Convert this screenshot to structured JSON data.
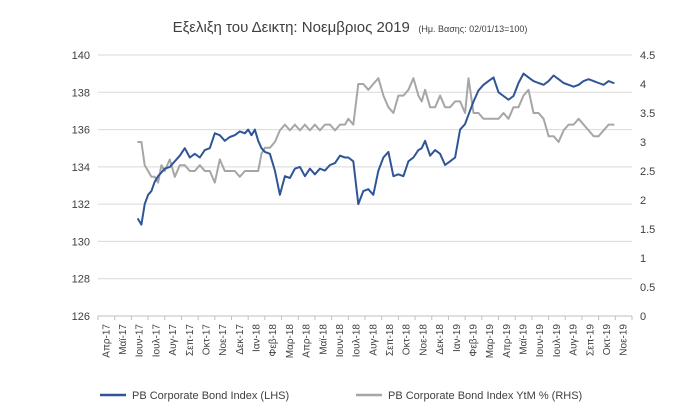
{
  "chart_data": {
    "type": "line",
    "title": "Εξελιξη του Δεικτη: Νοεμβριος 2019",
    "subtitle": "(Ημ. Βασης: 02/01/13=100)",
    "x_labels": [
      "Απρ-17",
      "Μαϊ-17",
      "Ιουν-17",
      "Ιουλ-17",
      "Αυγ-17",
      "Σεπ-17",
      "Οκτ-17",
      "Νοε-17",
      "Δεκ-17",
      "Ιαν-18",
      "Φεβ-18",
      "Μαρ-18",
      "Απρ-18",
      "Μαϊ-18",
      "Ιουν-18",
      "Ιουλ-18",
      "Αυγ-18",
      "Σεπ-18",
      "Οκτ-18",
      "Νοε-18",
      "Δεκ-18",
      "Ιαν-19",
      "Φεβ-19",
      "Μαρ-19",
      "Απρ-19",
      "Μαϊ-19",
      "Ιουν-19",
      "Ιουλ-19",
      "Αυγ-19",
      "Σεπ-19",
      "Οκτ-19",
      "Νοε-19"
    ],
    "y_left": {
      "min": 126,
      "max": 140,
      "step": 2,
      "ticks": [
        "126",
        "128",
        "130",
        "132",
        "134",
        "136",
        "138",
        "140"
      ]
    },
    "y_right": {
      "min": 0,
      "max": 4.5,
      "step": 0.5,
      "ticks": [
        "0",
        "0.5",
        "1",
        "1.5",
        "2",
        "2.5",
        "3",
        "3.5",
        "4",
        "4.5"
      ]
    },
    "grid": "horizontal",
    "legend_position": "bottom",
    "series": [
      {
        "name": "PB Corporate Bond Index (LHS)",
        "axis": "left",
        "color": "#2f5597",
        "x": [
          2.4,
          2.6,
          2.8,
          3.0,
          3.2,
          3.4,
          3.6,
          3.8,
          4.0,
          4.3,
          4.6,
          4.9,
          5.2,
          5.5,
          5.8,
          6.1,
          6.4,
          6.7,
          7.0,
          7.3,
          7.6,
          7.9,
          8.2,
          8.5,
          8.8,
          9.0,
          9.2,
          9.4,
          9.6,
          9.8,
          10.0,
          10.3,
          10.6,
          10.9,
          11.2,
          11.5,
          11.8,
          12.1,
          12.4,
          12.7,
          13.0,
          13.3,
          13.6,
          13.9,
          14.2,
          14.5,
          14.8,
          15.0,
          15.3,
          15.6,
          15.9,
          16.2,
          16.5,
          16.8,
          17.1,
          17.4,
          17.7,
          18.0,
          18.3,
          18.6,
          18.9,
          19.2,
          19.4,
          19.6,
          19.9,
          20.2,
          20.5,
          20.8,
          21.1,
          21.4,
          21.7,
          22.0,
          22.2,
          22.5,
          22.8,
          23.1,
          23.4,
          23.7,
          24.0,
          24.3,
          24.6,
          24.9,
          25.2,
          25.5,
          25.8,
          26.1,
          26.4,
          26.7,
          27.0,
          27.3,
          27.6,
          27.9,
          28.2,
          28.5,
          28.8,
          29.1,
          29.4,
          29.7,
          30.0,
          30.3,
          30.6,
          30.9
        ],
        "values": [
          131.2,
          130.9,
          132.0,
          132.5,
          132.7,
          133.2,
          133.5,
          133.7,
          133.9,
          134.0,
          134.3,
          134.6,
          135.0,
          134.5,
          134.7,
          134.5,
          134.9,
          135.0,
          135.8,
          135.7,
          135.4,
          135.6,
          135.7,
          135.9,
          135.8,
          136.0,
          135.7,
          136.0,
          135.4,
          135.0,
          134.8,
          134.7,
          133.8,
          132.5,
          133.5,
          133.4,
          133.9,
          134.0,
          133.5,
          133.9,
          133.6,
          133.9,
          133.8,
          134.1,
          134.2,
          134.6,
          134.5,
          134.5,
          134.3,
          132.0,
          132.7,
          132.8,
          132.5,
          133.8,
          134.5,
          134.8,
          133.5,
          133.6,
          133.5,
          134.3,
          134.5,
          134.9,
          135.0,
          135.4,
          134.6,
          134.9,
          134.7,
          134.1,
          134.3,
          134.5,
          136.0,
          136.3,
          136.8,
          137.5,
          138.1,
          138.4,
          138.6,
          138.8,
          138.0,
          137.8,
          137.6,
          137.8,
          138.5,
          139.0,
          138.8,
          138.6,
          138.5,
          138.4,
          138.6,
          138.9,
          138.7,
          138.5,
          138.4,
          138.3,
          138.4,
          138.6,
          138.7,
          138.6,
          138.5,
          138.4,
          138.6,
          138.5
        ]
      },
      {
        "name": "PB Corporate Bond Index  YtM % (RHS)",
        "axis": "right",
        "color": "#a6a6a6",
        "x": [
          2.4,
          2.6,
          2.8,
          3.0,
          3.2,
          3.4,
          3.6,
          3.8,
          4.0,
          4.3,
          4.6,
          4.9,
          5.2,
          5.5,
          5.8,
          6.1,
          6.4,
          6.7,
          7.0,
          7.3,
          7.6,
          7.9,
          8.2,
          8.5,
          8.8,
          9.0,
          9.2,
          9.4,
          9.6,
          9.8,
          10.0,
          10.3,
          10.6,
          10.9,
          11.2,
          11.5,
          11.8,
          12.1,
          12.4,
          12.7,
          13.0,
          13.3,
          13.6,
          13.9,
          14.2,
          14.5,
          14.8,
          15.0,
          15.3,
          15.6,
          15.9,
          16.2,
          16.5,
          16.8,
          17.1,
          17.4,
          17.7,
          18.0,
          18.3,
          18.6,
          18.9,
          19.2,
          19.4,
          19.6,
          19.9,
          20.2,
          20.5,
          20.8,
          21.1,
          21.4,
          21.7,
          22.0,
          22.2,
          22.5,
          22.8,
          23.1,
          23.4,
          23.7,
          24.0,
          24.3,
          24.6,
          24.9,
          25.2,
          25.5,
          25.8,
          26.1,
          26.4,
          26.7,
          27.0,
          27.3,
          27.6,
          27.9,
          28.2,
          28.5,
          28.8,
          29.1,
          29.4,
          29.7,
          30.0,
          30.3,
          30.6,
          30.9
        ],
        "values": [
          3.0,
          3.0,
          2.6,
          2.5,
          2.4,
          2.4,
          2.3,
          2.6,
          2.5,
          2.7,
          2.4,
          2.6,
          2.6,
          2.5,
          2.5,
          2.6,
          2.5,
          2.5,
          2.3,
          2.7,
          2.5,
          2.5,
          2.5,
          2.4,
          2.5,
          2.5,
          2.5,
          2.5,
          2.5,
          2.8,
          2.9,
          2.9,
          3.0,
          3.2,
          3.3,
          3.2,
          3.3,
          3.2,
          3.3,
          3.2,
          3.3,
          3.2,
          3.3,
          3.3,
          3.2,
          3.3,
          3.3,
          3.4,
          3.3,
          4.0,
          4.0,
          3.9,
          4.0,
          4.1,
          3.8,
          3.6,
          3.5,
          3.8,
          3.8,
          3.9,
          4.1,
          3.8,
          3.7,
          3.9,
          3.6,
          3.6,
          3.8,
          3.6,
          3.6,
          3.7,
          3.7,
          3.5,
          4.1,
          3.5,
          3.5,
          3.4,
          3.4,
          3.4,
          3.4,
          3.5,
          3.4,
          3.6,
          3.6,
          3.8,
          3.9,
          3.5,
          3.5,
          3.4,
          3.1,
          3.1,
          3.0,
          3.2,
          3.3,
          3.3,
          3.4,
          3.3,
          3.2,
          3.1,
          3.1,
          3.2,
          3.3,
          3.3
        ]
      }
    ]
  }
}
